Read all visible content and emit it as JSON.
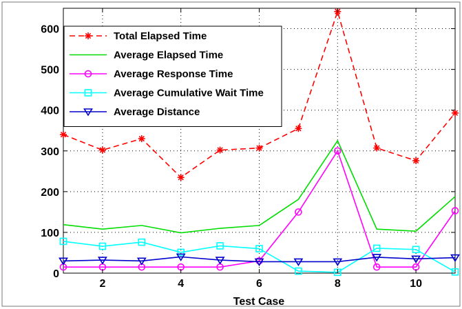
{
  "chart_data": {
    "type": "line",
    "xlabel": "Test Case",
    "ylabel": "",
    "xlim": [
      1,
      11
    ],
    "ylim": [
      0,
      650
    ],
    "xticks": [
      2,
      4,
      6,
      8,
      10
    ],
    "yticks": [
      0,
      100,
      200,
      300,
      400,
      500,
      600
    ],
    "grid": true,
    "legend_position": "top-left",
    "x": [
      1,
      2,
      3,
      4,
      5,
      6,
      7,
      8,
      9,
      10,
      11
    ],
    "series": [
      {
        "name": "Total Elapsed Time",
        "color": "#ff0000",
        "line": "dashed",
        "marker": "asterisk",
        "values": [
          340,
          302,
          330,
          235,
          302,
          307,
          355,
          642,
          307,
          276,
          393
        ]
      },
      {
        "name": "Average Elapsed Time",
        "color": "#00dd00",
        "line": "solid",
        "marker": "none",
        "values": [
          119,
          108,
          117,
          99,
          110,
          117,
          181,
          325,
          108,
          103,
          188
        ]
      },
      {
        "name": "Average Response Time",
        "color": "#ff00ff",
        "line": "solid",
        "marker": "circle",
        "values": [
          15,
          15,
          15,
          15,
          15,
          30,
          150,
          300,
          15,
          15,
          153
        ]
      },
      {
        "name": "Average Cumulative Wait Time",
        "color": "#00ffff",
        "line": "solid",
        "marker": "square",
        "values": [
          78,
          66,
          76,
          51,
          67,
          60,
          5,
          2,
          61,
          58,
          3
        ]
      },
      {
        "name": "Average Distance",
        "color": "#0000cc",
        "line": "solid",
        "marker": "triangle-down",
        "values": [
          30,
          32,
          30,
          40,
          32,
          28,
          28,
          28,
          39,
          35,
          38
        ]
      }
    ]
  }
}
